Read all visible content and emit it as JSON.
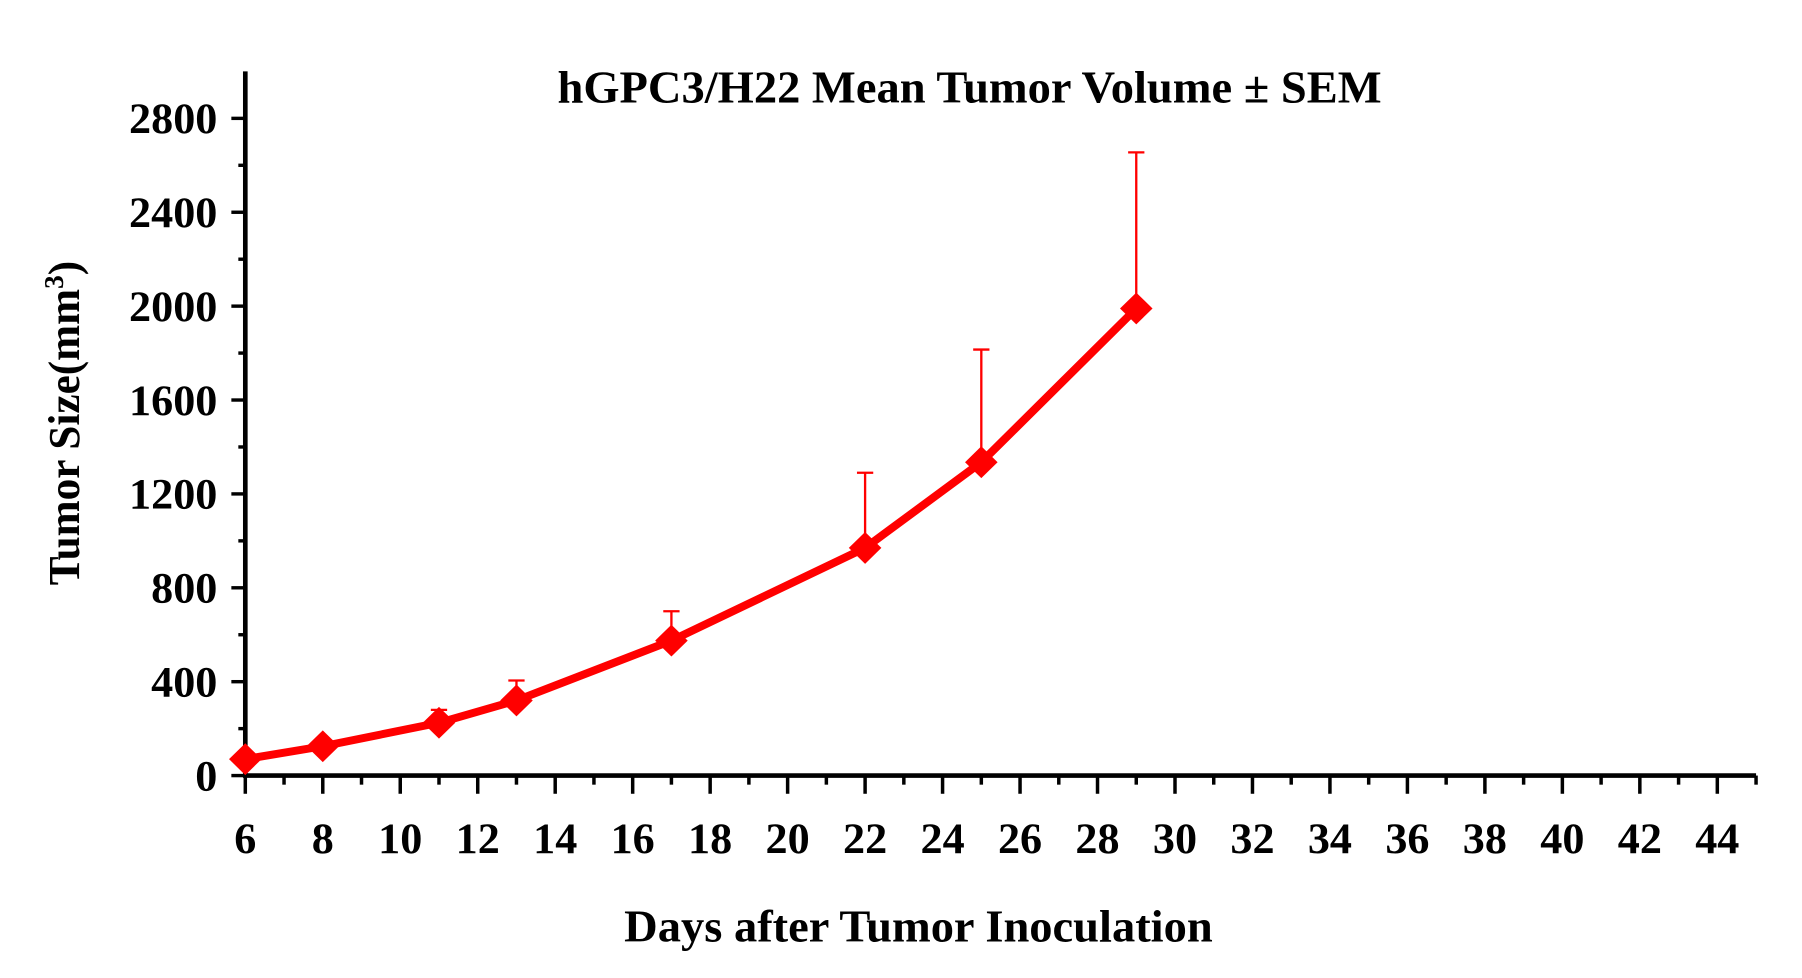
{
  "chart_data": {
    "type": "line",
    "title": "hGPC3/H22 Mean Tumor Volume ± SEM",
    "xlabel": "Days after Tumor Inoculation",
    "ylabel": "Tumor Size(mm",
    "ylabel_superscript": "3",
    "ylabel_close": ")",
    "xlim": [
      6,
      45
    ],
    "ylim": [
      0,
      3000
    ],
    "x_ticks": [
      6,
      8,
      10,
      12,
      14,
      16,
      18,
      20,
      22,
      24,
      26,
      28,
      30,
      32,
      34,
      36,
      38,
      40,
      42,
      44
    ],
    "y_ticks": [
      0,
      400,
      800,
      1200,
      1600,
      2000,
      2400,
      2800
    ],
    "grid": false,
    "legend": "none",
    "series": [
      {
        "color": "#ff0000",
        "marker": "diamond",
        "x": [
          6,
          8,
          11,
          13,
          17,
          22,
          25,
          29
        ],
        "y": [
          70,
          125,
          225,
          320,
          575,
          970,
          1335,
          1990
        ],
        "sem": [
          10,
          12,
          55,
          85,
          125,
          320,
          480,
          665
        ]
      }
    ]
  }
}
